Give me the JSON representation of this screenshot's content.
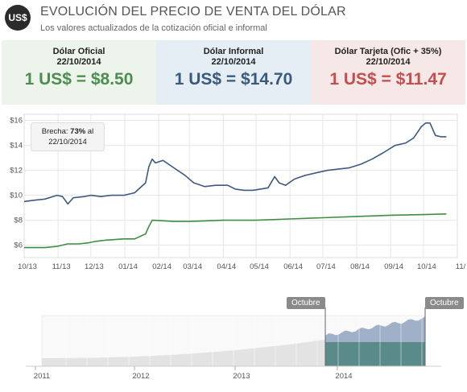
{
  "header": {
    "logo": "US$",
    "title": "EVOLUCIÓN DEL PRECIO DE VENTA DEL DÓLAR",
    "subtitle": "Los valores actualizados de la cotización oficial e informal"
  },
  "cards": [
    {
      "name": "Dólar Oficial",
      "date": "22/10/2014",
      "value": "1 US$ = $8.50"
    },
    {
      "name": "Dólar Informal",
      "date": "22/10/2014",
      "value": "1 US$ = $14.70"
    },
    {
      "name": "Dólar Tarjeta (Ofic + 35%)",
      "date": "22/10/2014",
      "value": "1 US$ = $11.47"
    }
  ],
  "brecha": {
    "label": "Brecha: ",
    "value": "73%",
    "suffix": " al",
    "date": "22/10/2014"
  },
  "navigator": {
    "flag_left": "Octubre",
    "flag_right": "Octubre",
    "years": [
      "2011",
      "2012",
      "2013",
      "2014"
    ]
  },
  "colors": {
    "oficial": "#3e8e41",
    "informal": "#3d5a80",
    "navigator_fill": "#9fb0c8",
    "navigator_dark": "#5a8a8a"
  },
  "chart_data": {
    "type": "line",
    "y_ticks": [
      "$6",
      "$8",
      "$10",
      "$12",
      "$14",
      "$16"
    ],
    "ylim": [
      5,
      16.5
    ],
    "x_ticks": [
      "10/13",
      "11/13",
      "12/13",
      "01/14",
      "02/14",
      "03/14",
      "04/14",
      "05/14",
      "06/14",
      "07/14",
      "08/14",
      "09/14",
      "10/14",
      "11/"
    ],
    "x_range": [
      "2013-10-01",
      "2014-11-01"
    ],
    "grid": true,
    "series": [
      {
        "key": "informal",
        "points": [
          [
            "2013-10-01",
            9.5
          ],
          [
            "2013-10-10",
            9.6
          ],
          [
            "2013-10-20",
            9.7
          ],
          [
            "2013-10-31",
            10.0
          ],
          [
            "2013-11-05",
            9.9
          ],
          [
            "2013-11-10",
            9.3
          ],
          [
            "2013-11-15",
            9.8
          ],
          [
            "2013-11-25",
            9.9
          ],
          [
            "2013-12-01",
            10.0
          ],
          [
            "2013-12-10",
            9.9
          ],
          [
            "2013-12-20",
            10.0
          ],
          [
            "2013-12-31",
            10.0
          ],
          [
            "2014-01-10",
            10.2
          ],
          [
            "2014-01-20",
            11.0
          ],
          [
            "2014-01-23",
            12.3
          ],
          [
            "2014-01-26",
            12.9
          ],
          [
            "2014-01-29",
            12.6
          ],
          [
            "2014-02-05",
            12.8
          ],
          [
            "2014-02-15",
            12.2
          ],
          [
            "2014-02-25",
            11.6
          ],
          [
            "2014-03-05",
            11.0
          ],
          [
            "2014-03-15",
            10.7
          ],
          [
            "2014-03-25",
            10.8
          ],
          [
            "2014-04-05",
            10.8
          ],
          [
            "2014-04-12",
            10.5
          ],
          [
            "2014-04-20",
            10.4
          ],
          [
            "2014-04-28",
            10.4
          ],
          [
            "2014-05-05",
            10.5
          ],
          [
            "2014-05-12",
            10.6
          ],
          [
            "2014-05-18",
            11.5
          ],
          [
            "2014-05-22",
            11.0
          ],
          [
            "2014-05-28",
            10.8
          ],
          [
            "2014-06-05",
            11.3
          ],
          [
            "2014-06-15",
            11.6
          ],
          [
            "2014-06-25",
            11.8
          ],
          [
            "2014-07-05",
            12.0
          ],
          [
            "2014-07-15",
            12.1
          ],
          [
            "2014-07-25",
            12.2
          ],
          [
            "2014-08-05",
            12.5
          ],
          [
            "2014-08-15",
            12.9
          ],
          [
            "2014-08-25",
            13.4
          ],
          [
            "2014-09-05",
            14.0
          ],
          [
            "2014-09-15",
            14.2
          ],
          [
            "2014-09-22",
            14.6
          ],
          [
            "2014-09-29",
            15.5
          ],
          [
            "2014-10-03",
            15.8
          ],
          [
            "2014-10-07",
            15.8
          ],
          [
            "2014-10-12",
            14.8
          ],
          [
            "2014-10-17",
            14.7
          ],
          [
            "2014-10-22",
            14.7
          ]
        ]
      },
      {
        "key": "oficial",
        "points": [
          [
            "2013-10-01",
            5.8
          ],
          [
            "2013-10-20",
            5.8
          ],
          [
            "2013-10-31",
            5.9
          ],
          [
            "2013-11-05",
            6.0
          ],
          [
            "2013-11-10",
            6.1
          ],
          [
            "2013-11-20",
            6.1
          ],
          [
            "2013-11-30",
            6.2
          ],
          [
            "2013-12-05",
            6.3
          ],
          [
            "2013-12-15",
            6.4
          ],
          [
            "2013-12-31",
            6.5
          ],
          [
            "2014-01-10",
            6.5
          ],
          [
            "2014-01-20",
            6.9
          ],
          [
            "2014-01-23",
            7.5
          ],
          [
            "2014-01-26",
            8.0
          ],
          [
            "2014-02-15",
            7.9
          ],
          [
            "2014-03-01",
            7.9
          ],
          [
            "2014-04-01",
            8.0
          ],
          [
            "2014-05-01",
            8.0
          ],
          [
            "2014-06-01",
            8.1
          ],
          [
            "2014-07-01",
            8.2
          ],
          [
            "2014-08-01",
            8.3
          ],
          [
            "2014-09-01",
            8.4
          ],
          [
            "2014-10-01",
            8.45
          ],
          [
            "2014-10-22",
            8.5
          ]
        ]
      }
    ]
  }
}
